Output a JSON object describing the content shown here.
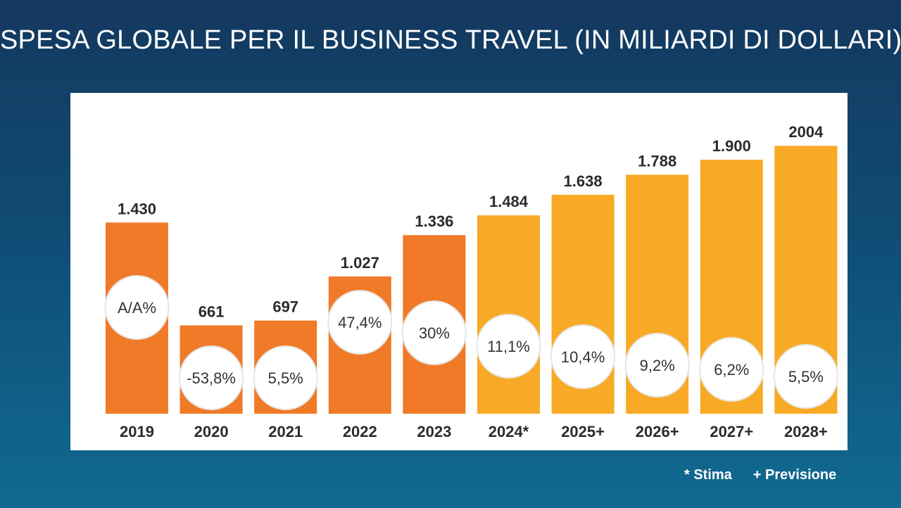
{
  "page": {
    "title": "SPESA GLOBALE PER IL BUSINESS TRAVEL (IN MILIARDI DI DOLLARI)"
  },
  "legend": {
    "estimate": "* Stima",
    "forecast": "+ Previsione"
  },
  "colors": {
    "actual": "#f07a27",
    "forecast": "#f8aa26",
    "circle_fill": "#ffffff",
    "circle_stroke": "#e6e6e6"
  },
  "chart_data": {
    "type": "bar",
    "title": "SPESA GLOBALE PER IL BUSINESS TRAVEL (IN MILIARDI DI DOLLARI)",
    "xlabel": "",
    "ylabel": "",
    "categories": [
      "2019",
      "2020",
      "2021",
      "2022",
      "2023",
      "2024*",
      "2025+",
      "2026+",
      "2027+",
      "2028+"
    ],
    "values": [
      1430,
      661,
      697,
      1027,
      1336,
      1484,
      1638,
      1788,
      1900,
      2004
    ],
    "value_labels": [
      "1.430",
      "661",
      "697",
      "1.027",
      "1.336",
      "1.484",
      "1.638",
      "1.788",
      "1.900",
      "2004"
    ],
    "yoy_labels": [
      "A/A%",
      "-53,8%",
      "5,5%",
      "47,4%",
      "30%",
      "11,1%",
      "10,4%",
      "9,2%",
      "6,2%",
      "5,5%"
    ],
    "kind": [
      "actual",
      "actual",
      "actual",
      "actual",
      "actual",
      "forecast",
      "forecast",
      "forecast",
      "forecast",
      "forecast"
    ],
    "grid": false,
    "legend_position": "bottom-right"
  }
}
